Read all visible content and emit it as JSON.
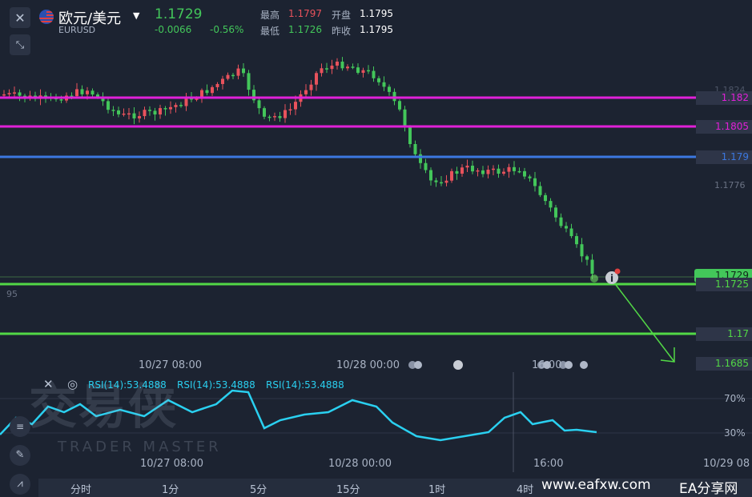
{
  "header": {
    "close_icon": "close-icon",
    "expand_icon": "expand-arrows-icon",
    "title": "欧元/美元",
    "symbol": "EURUSD",
    "price": "1.1729",
    "change": "-0.0066",
    "change_pct": "-0.56%",
    "high_label": "最高",
    "high_value": "1.1797",
    "low_label": "最低",
    "low_value": "1.1726",
    "open_label": "开盘",
    "open_value": "1.1795",
    "prev_close_label": "昨收",
    "prev_close_value": "1.1795"
  },
  "price_axis": {
    "tick_1824": "1.1824",
    "tick_1776": "1.1776",
    "tag_182": "1.182",
    "tag_1805": "1.1805",
    "tag_179": "1.179",
    "tag_current": "1.1729",
    "tag_1725": "1.1725",
    "tag_117": "1.17",
    "tag_1685": "1.1685",
    "left_cut": "95"
  },
  "time_axis": {
    "t1": "10/27 08:00",
    "t2": "10/28 00:00",
    "t3": "16:00"
  },
  "rsi": {
    "label1": "RSI(14):53.4888",
    "label2": "RSI(14):53.4888",
    "label3": "RSI(14):53.4888",
    "level70": "70%",
    "level30": "30%",
    "t1": "10/27 08:00",
    "t2": "10/28 00:00",
    "t3": "16:00",
    "t4": "10/29 08"
  },
  "watermark": {
    "brand_cn": "交易侠",
    "brand_en": "TRADER MASTER",
    "site": "www.eafxw.com",
    "site_name": "EA分享网"
  },
  "tabs": [
    "分时",
    "1分",
    "5分",
    "15分",
    "1时",
    "4时"
  ],
  "colors": {
    "magenta": "#e020d8",
    "blue": "#3c78e0",
    "green": "#52d846",
    "up": "#e8525c",
    "down": "#43c65a",
    "rsi": "#2ad0f0"
  }
}
